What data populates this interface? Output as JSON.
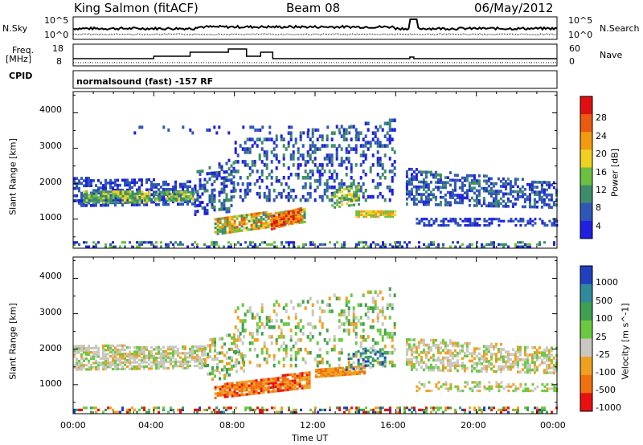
{
  "header": {
    "station": "King Salmon (fitACF)",
    "beam": "Beam 08",
    "date": "06/May/2012"
  },
  "top_panels": {
    "nsky_label": "N.Sky",
    "nsearch_label": "N.Search",
    "freq_label_1": "Freq.",
    "freq_label_2": "[MHz]",
    "nave_label": "Nave",
    "cpid_label": "CPID",
    "noise_ticks_left": [
      "10^5",
      "10^0"
    ],
    "noise_ticks_right": [
      "10^5",
      "10^0"
    ],
    "freq_ticks_left": [
      "18",
      "8"
    ],
    "nave_ticks_right": [
      "60",
      "0"
    ],
    "cpid_text": "normalsound (fast) -157 RF"
  },
  "chart_data": [
    {
      "type": "heatmap",
      "panel": "power",
      "ylabel": "Slant Range [km]",
      "xlabel": "Time UT",
      "y_ticks": [
        "1000",
        "2000",
        "3000",
        "4000"
      ],
      "ylim": [
        180,
        4600
      ],
      "xlim": [
        0,
        24
      ],
      "x_ticks": [
        "00:00",
        "04:00",
        "08:00",
        "12:00",
        "16:00",
        "20:00",
        "00:00"
      ],
      "colorbar": {
        "label": "Power [dB]",
        "ticks": [
          "4",
          "8",
          "12",
          "16",
          "20",
          "24",
          "28"
        ],
        "colors": [
          "#2020e0",
          "#2f57b8",
          "#3f8c6a",
          "#6cc040",
          "#f0d020",
          "#f29a10",
          "#ea5a10",
          "#e01010"
        ]
      }
    },
    {
      "type": "heatmap",
      "panel": "velocity",
      "ylabel": "Slant Range [km]",
      "xlabel": "Time UT",
      "y_ticks": [
        "1000",
        "2000",
        "3000",
        "4000"
      ],
      "ylim": [
        180,
        4600
      ],
      "xlim": [
        0,
        24
      ],
      "x_ticks": [
        "00:00",
        "04:00",
        "08:00",
        "12:00",
        "16:00",
        "20:00",
        "00:00"
      ],
      "colorbar": {
        "label": "Velocity [m s^-1]",
        "ticks": [
          "1000",
          "500",
          "100",
          "25",
          "-25",
          "-100",
          "-500",
          "-1000"
        ],
        "colors": [
          "#2040c0",
          "#2f8a9a",
          "#3ea050",
          "#6cc840",
          "#c8c8c0",
          "#f0a020",
          "#f07010",
          "#e81010"
        ]
      }
    }
  ],
  "axis_label": "Time UT"
}
